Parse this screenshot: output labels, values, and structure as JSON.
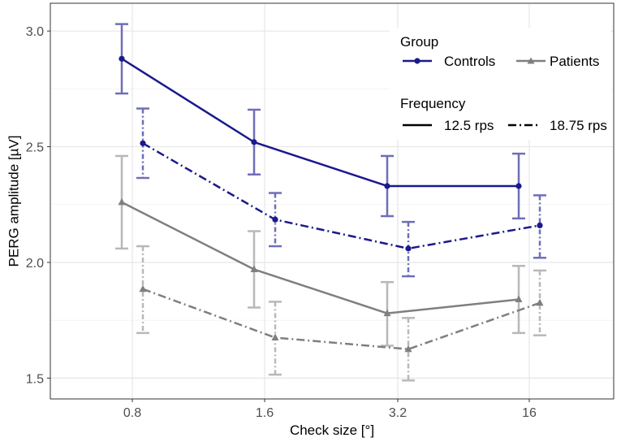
{
  "chart_data": {
    "type": "line",
    "title": "",
    "xlabel": "Check size [°]",
    "ylabel": "PERG amplitude [µV]",
    "categories": [
      "0.8",
      "1.6",
      "3.2",
      "16"
    ],
    "ylim": [
      1.41,
      3.12
    ],
    "yticks": [
      1.5,
      2.0,
      2.5,
      3.0
    ],
    "ytick_labels": [
      "1.5",
      "2.0",
      "2.5",
      "3.0"
    ],
    "grid": true,
    "legend_position": "top-right",
    "legend": {
      "group_title": "Group",
      "group_entries": [
        "Controls",
        "Patients"
      ],
      "frequency_title": "Frequency",
      "frequency_entries": [
        "12.5 rps",
        "18.75 rps"
      ]
    },
    "series": [
      {
        "name": "Controls – 12.5 rps",
        "group": "Controls",
        "frequency": "12.5 rps",
        "color": "#1a1a8c",
        "errorbar_color": "#6e6eb8",
        "dash": "solid",
        "marker": "circle",
        "dodge": -1,
        "values": [
          2.88,
          2.52,
          2.33,
          2.33
        ],
        "lower": [
          2.73,
          2.38,
          2.2,
          2.19
        ],
        "upper": [
          3.03,
          2.66,
          2.46,
          2.47
        ]
      },
      {
        "name": "Controls – 18.75 rps",
        "group": "Controls",
        "frequency": "18.75 rps",
        "color": "#1a1a8c",
        "errorbar_color": "#6e6eb8",
        "dash": "dashdot",
        "marker": "circle",
        "dodge": 1,
        "values": [
          2.515,
          2.185,
          2.06,
          2.16
        ],
        "lower": [
          2.365,
          2.07,
          1.94,
          2.02
        ],
        "upper": [
          2.665,
          2.3,
          2.175,
          2.29
        ]
      },
      {
        "name": "Patients – 12.5 rps",
        "group": "Patients",
        "frequency": "12.5 rps",
        "color": "#7f7f7f",
        "errorbar_color": "#b8b8b8",
        "dash": "solid",
        "marker": "triangle",
        "dodge": -1,
        "values": [
          2.26,
          1.97,
          1.78,
          1.84
        ],
        "lower": [
          2.06,
          1.805,
          1.64,
          1.695
        ],
        "upper": [
          2.46,
          2.135,
          1.915,
          1.985
        ]
      },
      {
        "name": "Patients – 18.75 rps",
        "group": "Patients",
        "frequency": "18.75 rps",
        "color": "#7f7f7f",
        "errorbar_color": "#b8b8b8",
        "dash": "dashdot",
        "marker": "triangle",
        "dodge": 1,
        "values": [
          1.885,
          1.675,
          1.625,
          1.825
        ],
        "lower": [
          1.695,
          1.515,
          1.49,
          1.685
        ],
        "upper": [
          2.07,
          1.83,
          1.76,
          1.965
        ]
      }
    ]
  }
}
